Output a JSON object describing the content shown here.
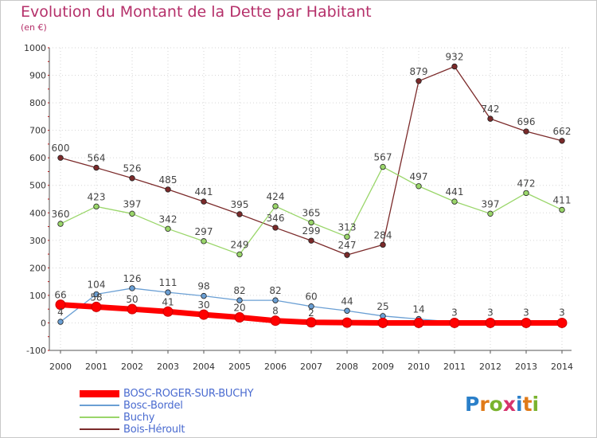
{
  "title": "Evolution du Montant de la Dette par Habitant",
  "unit_label": "(en €)",
  "logo": {
    "text": "Proxiti",
    "letter_colors": [
      "#2a7fc9",
      "#e07a18",
      "#7ab32e",
      "#d6336c",
      "#2a7fc9",
      "#e07a18",
      "#7ab32e"
    ]
  },
  "chart_data": {
    "type": "line",
    "x": [
      "2000",
      "2001",
      "2002",
      "2003",
      "2004",
      "2005",
      "2006",
      "2007",
      "2008",
      "2009",
      "2010",
      "2011",
      "2012",
      "2013",
      "2014"
    ],
    "ylim": [
      -100,
      1000
    ],
    "y_ticks": [
      "-100",
      "0",
      "100",
      "200",
      "300",
      "400",
      "500",
      "600",
      "700",
      "800",
      "900",
      "1000"
    ],
    "grid": true,
    "legend_position": "bottom-left",
    "series": [
      {
        "name": "BOSC-ROGER-SUR-BUCHY",
        "color": "#ff0000",
        "values": [
          66,
          58,
          50,
          41,
          30,
          20,
          8,
          2,
          1,
          0,
          0,
          0,
          0,
          0,
          0
        ],
        "labels": [
          "66",
          "58",
          "50",
          "41",
          "30",
          "20",
          "8",
          "2",
          "",
          "",
          "",
          "",
          "",
          "",
          ""
        ]
      },
      {
        "name": "Bosc-Bordel",
        "color": "#6a9fd4",
        "values": [
          4,
          104,
          126,
          111,
          98,
          82,
          82,
          60,
          44,
          25,
          14,
          3,
          3,
          3,
          3
        ],
        "labels": [
          "4",
          "104",
          "126",
          "111",
          "98",
          "82",
          "82",
          "60",
          "44",
          "25",
          "14",
          "3",
          "3",
          "3",
          "3"
        ]
      },
      {
        "name": "Buchy",
        "color": "#9ad66a",
        "values": [
          360,
          423,
          397,
          342,
          297,
          249,
          424,
          365,
          313,
          567,
          497,
          441,
          397,
          472,
          411
        ],
        "labels": [
          "360",
          "423",
          "397",
          "342",
          "297",
          "249",
          "424",
          "365",
          "313",
          "567",
          "497",
          "441",
          "397",
          "472",
          "411"
        ]
      },
      {
        "name": "Bois-Héroult",
        "color": "#7b2a2a",
        "values": [
          600,
          564,
          526,
          485,
          441,
          395,
          346,
          299,
          247,
          284,
          879,
          932,
          742,
          696,
          662
        ],
        "labels": [
          "600",
          "564",
          "526",
          "485",
          "441",
          "395",
          "346",
          "299",
          "247",
          "284",
          "879",
          "932",
          "742",
          "696",
          "662"
        ]
      }
    ]
  }
}
